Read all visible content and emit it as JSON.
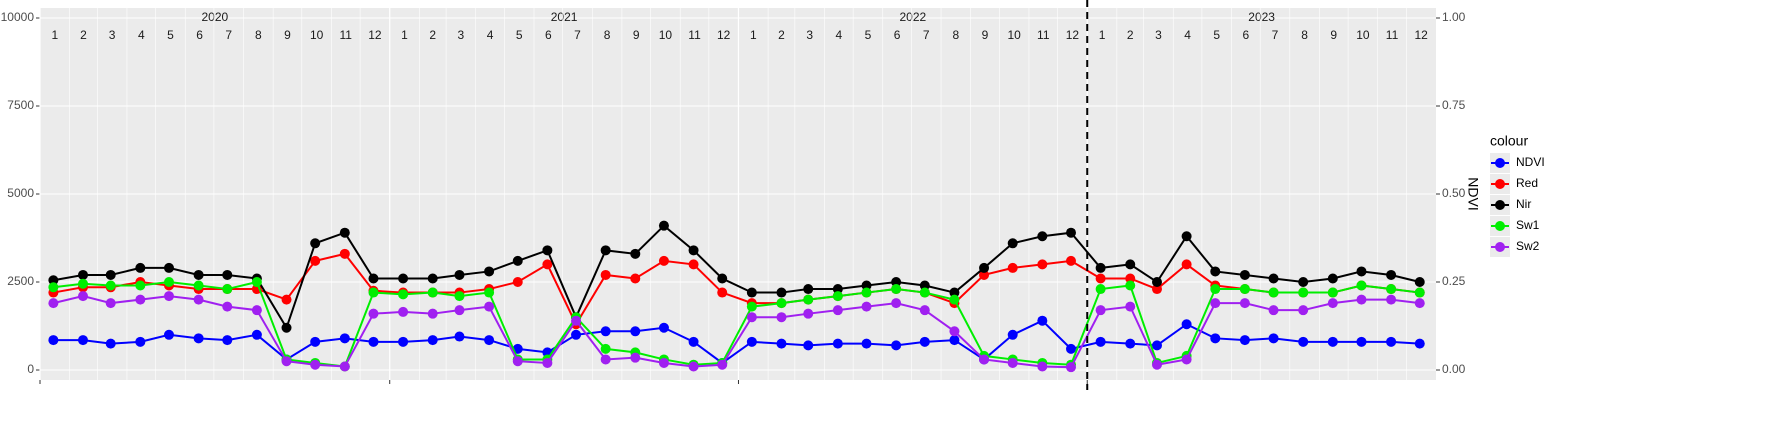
{
  "chart_data": {
    "type": "line",
    "y2label": "NDVI",
    "legend_title": "colour",
    "legend": "right",
    "grid": true,
    "strip": {
      "years": [
        2020,
        2021,
        2022,
        2023
      ],
      "months": [
        1,
        2,
        3,
        4,
        5,
        6,
        7,
        8,
        9,
        10,
        11,
        12
      ]
    },
    "vline": "2023-01-01",
    "xlim": [
      "2020-01-01",
      "2024-01-01"
    ],
    "xticks": [
      "2020-01-01",
      "2021-01-01",
      "2022-01-01",
      "2023-01-01"
    ],
    "ylim": [
      -284,
      10284
    ],
    "yticks": [
      0,
      2500,
      5000,
      7500,
      10000
    ],
    "y2lim": [
      -0.0284,
      1.0284
    ],
    "y2ticks": [
      {
        "value": 0,
        "label": "0.00"
      },
      {
        "value": 0.25,
        "label": "0.25"
      },
      {
        "value": 0.5,
        "label": "0.50"
      },
      {
        "value": 0.75,
        "label": "0.75"
      },
      {
        "value": 1,
        "label": "1.00"
      }
    ],
    "x": [
      "2020-01-15",
      "2020-02-15",
      "2020-03-15",
      "2020-04-15",
      "2020-05-15",
      "2020-06-15",
      "2020-07-15",
      "2020-08-15",
      "2020-09-15",
      "2020-10-15",
      "2020-11-15",
      "2020-12-15",
      "2021-01-15",
      "2021-02-15",
      "2021-03-15",
      "2021-04-15",
      "2021-05-15",
      "2021-06-15",
      "2021-07-15",
      "2021-08-15",
      "2021-09-15",
      "2021-10-15",
      "2021-11-15",
      "2021-12-15",
      "2022-01-15",
      "2022-02-15",
      "2022-03-15",
      "2022-04-15",
      "2022-05-15",
      "2022-06-15",
      "2022-07-15",
      "2022-08-15",
      "2022-09-15",
      "2022-10-15",
      "2022-11-15",
      "2022-12-15",
      "2023-01-15",
      "2023-02-15",
      "2023-03-15",
      "2023-04-15",
      "2023-05-15",
      "2023-06-15",
      "2023-07-15",
      "2023-08-15",
      "2023-09-15",
      "2023-10-15",
      "2023-11-15",
      "2023-12-15"
    ],
    "series": [
      {
        "name": "NDVI",
        "color": "#0000ff",
        "axis": "y2",
        "values": [
          0.085,
          0.085,
          0.075,
          0.08,
          0.1,
          0.09,
          0.085,
          0.1,
          0.03,
          0.08,
          0.09,
          0.08,
          0.08,
          0.085,
          0.095,
          0.085,
          0.06,
          0.05,
          0.1,
          0.11,
          0.11,
          0.12,
          0.08,
          0.02,
          0.08,
          0.075,
          0.07,
          0.075,
          0.075,
          0.07,
          0.08,
          0.085,
          0.03,
          0.1,
          0.14,
          0.06,
          0.08,
          0.075,
          0.07,
          0.13,
          0.09,
          0.085,
          0.09,
          0.08,
          0.08,
          0.08,
          0.08,
          0.075
        ]
      },
      {
        "name": "Red",
        "color": "#ff0000",
        "values": [
          2200,
          2350,
          2350,
          2500,
          2400,
          2300,
          2300,
          2300,
          2000,
          3100,
          3300,
          2250,
          2200,
          2200,
          2200,
          2300,
          2500,
          3000,
          1300,
          2700,
          2600,
          3100,
          3000,
          2200,
          1900,
          1900,
          2000,
          2100,
          2200,
          2300,
          2200,
          1900,
          2700,
          2900,
          3000,
          3100,
          2600,
          2600,
          2300,
          3000,
          2400,
          2300,
          2200,
          2200,
          2200,
          2400,
          2300,
          2200
        ]
      },
      {
        "name": "Nir",
        "color": "#000000",
        "values": [
          2550,
          2700,
          2700,
          2900,
          2900,
          2700,
          2700,
          2600,
          1200,
          3600,
          3900,
          2600,
          2600,
          2600,
          2700,
          2800,
          3100,
          3400,
          1500,
          3400,
          3300,
          4100,
          3400,
          2600,
          2200,
          2200,
          2300,
          2300,
          2400,
          2500,
          2400,
          2200,
          2900,
          3600,
          3800,
          3900,
          2900,
          3000,
          2500,
          3800,
          2800,
          2700,
          2600,
          2500,
          2600,
          2800,
          2700,
          2500
        ]
      },
      {
        "name": "Sw1",
        "color": "#00ee00",
        "values": [
          2350,
          2450,
          2400,
          2400,
          2500,
          2400,
          2300,
          2500,
          300,
          200,
          100,
          2200,
          2150,
          2200,
          2100,
          2200,
          300,
          300,
          1500,
          600,
          500,
          300,
          150,
          200,
          1800,
          1900,
          2000,
          2100,
          2200,
          2300,
          2200,
          2000,
          400,
          300,
          200,
          150,
          2300,
          2400,
          200,
          400,
          2300,
          2300,
          2200,
          2200,
          2200,
          2400,
          2300,
          2200
        ]
      },
      {
        "name": "Sw2",
        "color": "#a020f0",
        "values": [
          1900,
          2100,
          1900,
          2000,
          2100,
          2000,
          1800,
          1700,
          250,
          150,
          100,
          1600,
          1650,
          1600,
          1700,
          1800,
          250,
          200,
          1400,
          300,
          350,
          200,
          100,
          150,
          1500,
          1500,
          1600,
          1700,
          1800,
          1900,
          1700,
          1100,
          300,
          200,
          100,
          80,
          1700,
          1800,
          150,
          300,
          1900,
          1900,
          1700,
          1700,
          1900,
          2000,
          2000,
          1900
        ]
      }
    ]
  }
}
